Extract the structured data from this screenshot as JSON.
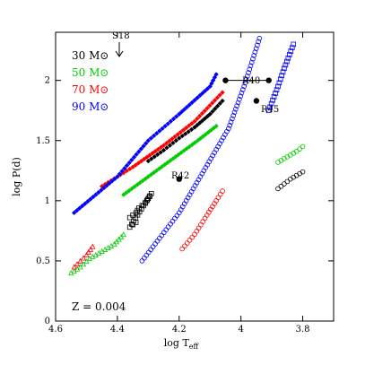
{
  "chart_data": {
    "type": "scatter",
    "xlabel": "log T",
    "xlabel_sub": "eff",
    "ylabel": "log P(d)",
    "xlim": [
      4.6,
      3.7
    ],
    "ylim": [
      0,
      2.4
    ],
    "x_ticks": [
      4.6,
      4.4,
      4.2,
      4,
      3.8
    ],
    "x_tick_labels": [
      "4.6",
      "4.4",
      "4.2",
      "4",
      "3.8"
    ],
    "y_ticks": [
      0,
      0.5,
      1,
      1.5,
      2
    ],
    "y_tick_labels": [
      "0",
      "0.5",
      "1",
      "1.5",
      "2"
    ],
    "metallicity_label": "Z = 0.004",
    "series": [
      {
        "name": "30 M⊙",
        "mass": "30",
        "color": "#000000",
        "tracks": [
          {
            "marker": "square",
            "points": [
              [
                4.36,
                0.86
              ],
              [
                4.34,
                0.9
              ],
              [
                4.33,
                0.94
              ],
              [
                4.31,
                0.98
              ],
              [
                4.3,
                1.02
              ],
              [
                4.29,
                1.06
              ],
              [
                4.36,
                0.78
              ],
              [
                4.34,
                0.82
              ]
            ]
          },
          {
            "marker": "diamond",
            "points": [
              [
                4.3,
                1.33
              ],
              [
                4.25,
                1.42
              ],
              [
                4.2,
                1.52
              ],
              [
                4.15,
                1.61
              ],
              [
                4.1,
                1.72
              ],
              [
                4.06,
                1.83
              ]
            ]
          },
          {
            "marker": "circle",
            "points": [
              [
                3.88,
                1.1
              ],
              [
                3.86,
                1.14
              ],
              [
                3.84,
                1.18
              ],
              [
                3.82,
                1.21
              ],
              [
                3.8,
                1.24
              ]
            ]
          }
        ]
      },
      {
        "name": "50 M⊙",
        "mass": "50",
        "color": "#00cc00",
        "tracks": [
          {
            "marker": "triangle",
            "points": [
              [
                4.55,
                0.4
              ],
              [
                4.52,
                0.45
              ],
              [
                4.49,
                0.52
              ],
              [
                4.45,
                0.58
              ],
              [
                4.41,
                0.64
              ],
              [
                4.38,
                0.72
              ]
            ]
          },
          {
            "marker": "diamond",
            "points": [
              [
                4.38,
                1.05
              ],
              [
                4.3,
                1.2
              ],
              [
                4.22,
                1.35
              ],
              [
                4.14,
                1.5
              ],
              [
                4.08,
                1.62
              ]
            ]
          },
          {
            "marker": "circle",
            "points": [
              [
                3.88,
                1.32
              ],
              [
                3.86,
                1.35
              ],
              [
                3.84,
                1.38
              ],
              [
                3.82,
                1.41
              ],
              [
                3.8,
                1.45
              ]
            ]
          }
        ]
      },
      {
        "name": "70 M⊙",
        "mass": "70",
        "color": "#ff0000",
        "tracks": [
          {
            "marker": "triangle",
            "points": [
              [
                4.54,
                0.45
              ],
              [
                4.52,
                0.5
              ],
              [
                4.5,
                0.55
              ],
              [
                4.48,
                0.62
              ]
            ]
          },
          {
            "marker": "circle",
            "points": [
              [
                4.19,
                0.6
              ],
              [
                4.15,
                0.72
              ],
              [
                4.11,
                0.88
              ],
              [
                4.08,
                1.0
              ],
              [
                4.06,
                1.08
              ]
            ]
          },
          {
            "marker": "diamond",
            "points": [
              [
                4.45,
                1.12
              ],
              [
                4.35,
                1.28
              ],
              [
                4.25,
                1.46
              ],
              [
                4.15,
                1.66
              ],
              [
                4.06,
                1.9
              ]
            ]
          }
        ]
      },
      {
        "name": "90 M⊙",
        "mass": "90",
        "color": "#0000ff",
        "tracks": [
          {
            "marker": "circle",
            "points": [
              [
                4.32,
                0.5
              ],
              [
                4.2,
                0.9
              ],
              [
                4.12,
                1.25
              ],
              [
                4.04,
                1.6
              ],
              [
                3.99,
                1.95
              ],
              [
                3.94,
                2.35
              ]
            ]
          },
          {
            "marker": "square",
            "points": [
              [
                3.91,
                1.75
              ],
              [
                3.88,
                1.95
              ],
              [
                3.86,
                2.1
              ],
              [
                3.83,
                2.3
              ]
            ]
          },
          {
            "marker": "diamond",
            "points": [
              [
                4.54,
                0.9
              ],
              [
                4.4,
                1.2
              ],
              [
                4.3,
                1.5
              ],
              [
                4.2,
                1.72
              ],
              [
                4.1,
                1.95
              ],
              [
                4.08,
                2.05
              ]
            ]
          }
        ]
      }
    ],
    "observations": [
      {
        "label": "R42",
        "x": 4.2,
        "y": 1.18
      },
      {
        "label": "R45",
        "x": 3.95,
        "y": 1.83
      },
      {
        "label": "R40",
        "x": 4.05,
        "y": 2.0
      },
      {
        "label": "R40-right",
        "x": 3.91,
        "y": 2.0
      }
    ],
    "r40_label": "R40",
    "r42_label": "R42",
    "r45_label": "R45",
    "s18_label": "S18",
    "s18_arrow": {
      "x": 4.4,
      "y_from": 2.58,
      "y_to": 2.33
    }
  }
}
